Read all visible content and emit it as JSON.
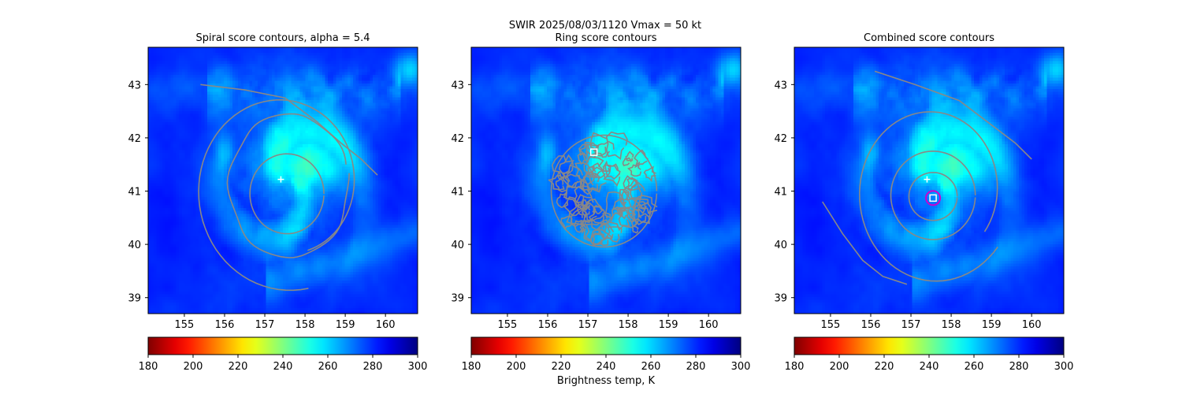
{
  "suptitle": "SWIR  2025/08/03/1120    Vmax = 50 kt",
  "colorbar_label": "Brightness temp, K",
  "colors": {
    "contour": "#888888",
    "center_plus": "#ffffff",
    "ring_marker": "#cc00cc",
    "square_marker": "#ffffff"
  },
  "colormap": "jet_reversed",
  "chart_data": [
    {
      "type": "heatmap",
      "title": "Spiral score contours, alpha =  5.4",
      "xlim": [
        154.1,
        160.8
      ],
      "ylim": [
        38.7,
        43.7
      ],
      "xticks": [
        "155",
        "156",
        "157",
        "158",
        "159",
        "160"
      ],
      "yticks": [
        "39",
        "40",
        "41",
        "42",
        "43"
      ],
      "colorbar": {
        "label": "",
        "range": [
          180,
          300
        ],
        "ticks": [
          "180",
          "200",
          "220",
          "240",
          "260",
          "280",
          "300"
        ]
      },
      "center_plus": [
        157.4,
        41.22
      ],
      "contour_type": "spiral"
    },
    {
      "type": "heatmap",
      "title": "Ring score contours",
      "xlim": [
        154.1,
        160.8
      ],
      "ylim": [
        38.7,
        43.7
      ],
      "xticks": [
        "155",
        "156",
        "157",
        "158",
        "159",
        "160"
      ],
      "yticks": [
        "39",
        "40",
        "41",
        "42",
        "43"
      ],
      "colorbar": {
        "label": "Brightness temp, K",
        "range": [
          180,
          300
        ],
        "ticks": [
          "180",
          "200",
          "220",
          "240",
          "260",
          "280",
          "300"
        ]
      },
      "square_marker": [
        157.15,
        41.73
      ],
      "contour_type": "ring",
      "ring_region": {
        "center": [
          157.4,
          41.0
        ],
        "radius_deg": 1.05
      }
    },
    {
      "type": "heatmap",
      "title": "Combined score contours",
      "xlim": [
        154.1,
        160.8
      ],
      "ylim": [
        38.7,
        43.7
      ],
      "xticks": [
        "155",
        "156",
        "157",
        "158",
        "159",
        "160"
      ],
      "yticks": [
        "39",
        "40",
        "41",
        "42",
        "43"
      ],
      "colorbar": {
        "label": "",
        "range": [
          180,
          300
        ],
        "ticks": [
          "180",
          "200",
          "220",
          "240",
          "260",
          "280",
          "300"
        ]
      },
      "center_plus": [
        157.4,
        41.22
      ],
      "square_marker": [
        157.55,
        40.87
      ],
      "ring_marker": [
        157.55,
        40.87
      ],
      "contour_type": "combined"
    }
  ]
}
